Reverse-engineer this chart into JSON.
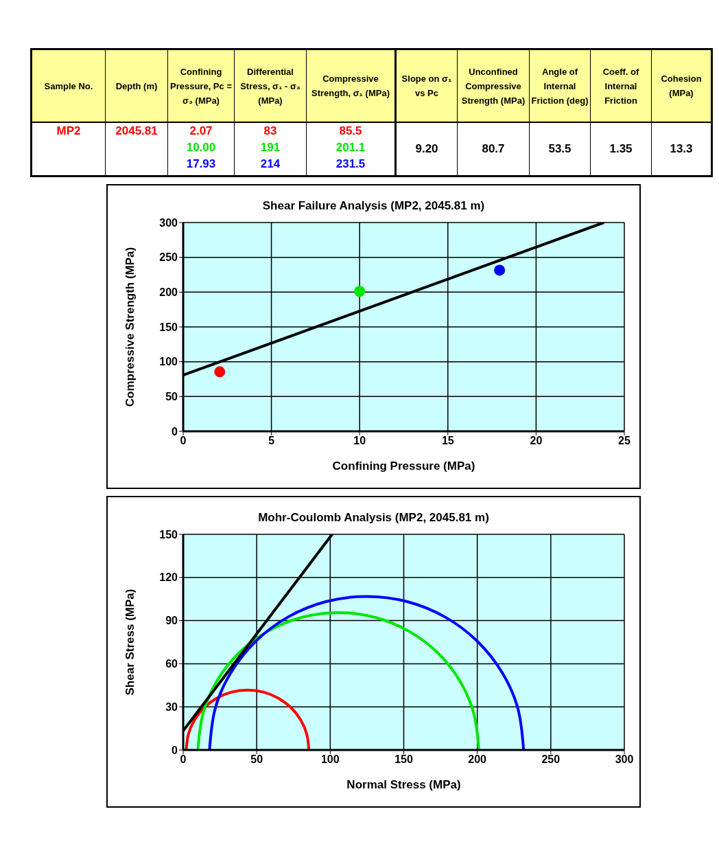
{
  "chart_data": [
    {
      "type": "other",
      "categories": [
        "Sample No.",
        "Depth (m)",
        "Confining Pressure, Pc = σ₃ (MPa)",
        "Differential Stress, σ₁ - σ₃ (MPa)",
        "Compressive Strength, σ₁ (MPa)",
        "Slope on σ₁ vs Pc",
        "Unconfined Compressive Strength (MPa)",
        "Angle of Internal Friction (deg)",
        "Coeff. of Internal Friction",
        "Cohesion (MPa)"
      ],
      "series": [
        {
          "color": "#ff0000",
          "values": [
            null,
            2045.81,
            2.07,
            83,
            85.5,
            null,
            null,
            null,
            null,
            null
          ],
          "value_labels": [
            "MP2",
            "2045.81",
            "2.07",
            "83",
            "85.5",
            null,
            null,
            null,
            null,
            null
          ]
        },
        {
          "color": "#00e600",
          "values": [
            null,
            null,
            10.0,
            191,
            201.1,
            null,
            null,
            null,
            null,
            null
          ],
          "value_labels": [
            null,
            null,
            "10.00",
            "191",
            "201.1",
            null,
            null,
            null,
            null,
            null
          ]
        },
        {
          "color": "#0000ff",
          "values": [
            null,
            null,
            17.93,
            214,
            231.5,
            null,
            null,
            null,
            null,
            null
          ],
          "value_labels": [
            null,
            null,
            "17.93",
            "214",
            "231.5",
            null,
            null,
            null,
            null,
            null
          ]
        },
        {
          "color": "#000000",
          "values": [
            null,
            null,
            null,
            null,
            null,
            9.2,
            80.7,
            53.5,
            1.35,
            13.3
          ],
          "value_labels": [
            null,
            null,
            null,
            null,
            null,
            "9.20",
            "80.7",
            "53.5",
            "1.35",
            "13.3"
          ]
        }
      ]
    },
    {
      "type": "scatter",
      "title": "Shear Failure Analysis (MP2, 2045.81 m)",
      "xlabel": "Confining Pressure (MPa)",
      "ylabel": "Compressive Strength (MPa)",
      "xlim": [
        0,
        25
      ],
      "xticks": [
        0,
        5,
        10,
        15,
        20,
        25
      ],
      "ylim": [
        0,
        300
      ],
      "yticks": [
        0,
        50,
        100,
        150,
        200,
        250,
        300
      ],
      "grid": true,
      "series": [
        {
          "type": "line",
          "color": "#000000",
          "x": [
            0,
            23.84
          ],
          "values": [
            80.7,
            300
          ]
        },
        {
          "type": "scatter",
          "marker": "circle",
          "x": [
            2.07,
            10.0,
            17.93
          ],
          "values": [
            85.5,
            201.1,
            231.5
          ],
          "colors": [
            "#ff0000",
            "#00e600",
            "#0000ff"
          ]
        }
      ]
    },
    {
      "type": "line",
      "title": "Mohr-Coulomb Analysis (MP2, 2045.81 m)",
      "xlabel": "Normal Stress (MPa)",
      "ylabel": "Shear Stress (MPa)",
      "xlim": [
        0,
        300
      ],
      "xticks": [
        0,
        50,
        100,
        150,
        200,
        250,
        300
      ],
      "ylim": [
        0,
        150
      ],
      "yticks": [
        0,
        30,
        60,
        90,
        120,
        150
      ],
      "grid": true,
      "series": [
        {
          "color": "#ff0000",
          "x": [
            2.07,
            3.5,
            7.7,
            14.3,
            22.9,
            33.0,
            43.8,
            54.6,
            64.6,
            73.3,
            79.9,
            84.1,
            85.5
          ],
          "values": [
            0,
            10.8,
            20.9,
            29.5,
            36.1,
            40.3,
            41.7,
            40.3,
            36.1,
            29.5,
            20.9,
            10.8,
            0
          ]
        },
        {
          "color": "#00e600",
          "x": [
            10.0,
            13.3,
            22.8,
            38.0,
            57.8,
            80.8,
            105.6,
            130.3,
            153.3,
            173.1,
            188.3,
            197.8,
            201.1
          ],
          "values": [
            0,
            24.7,
            47.8,
            67.6,
            82.7,
            92.3,
            95.6,
            92.3,
            82.7,
            67.6,
            47.8,
            24.7,
            0
          ]
        },
        {
          "color": "#0000ff",
          "x": [
            17.9,
            21.5,
            32.2,
            49.2,
            71.3,
            97.0,
            124.7,
            152.4,
            178.1,
            200.2,
            217.2,
            227.9,
            231.5
          ],
          "values": [
            0,
            27.7,
            53.4,
            75.5,
            92.5,
            103.2,
            106.8,
            103.2,
            92.5,
            75.5,
            53.4,
            27.7,
            0
          ]
        },
        {
          "color": "#000000",
          "x": [
            0,
            101.3
          ],
          "values": [
            13.3,
            150
          ]
        }
      ]
    }
  ]
}
